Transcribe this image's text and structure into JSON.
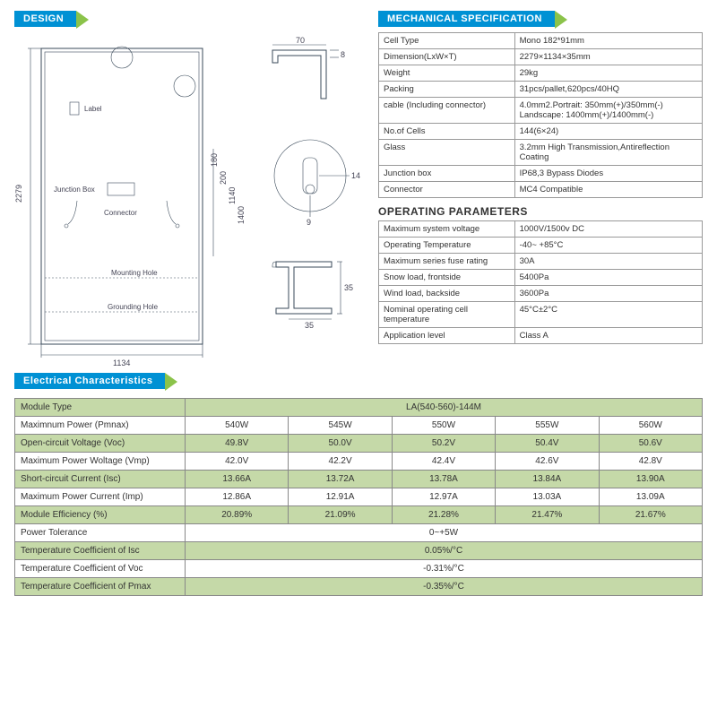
{
  "headers": {
    "design": "DESIGN",
    "mech": "MECHANICAL SPECIFICATION",
    "op": "OPERATING PARAMETERS",
    "elec": "Electrical Characteristics"
  },
  "diagram": {
    "label": "Label",
    "junction_box": "Junction Box",
    "connector": "Connector",
    "mounting_hole": "Mounting Hole",
    "grounding_hole": "Grounding Hole",
    "dim_height": "2279",
    "dim_width": "1134",
    "d70": "70",
    "d8": "8",
    "d14": "14",
    "d9": "9",
    "d35a": "35",
    "d35b": "35",
    "d1400": "1400",
    "d1140": "1140",
    "d200": "200",
    "d180": "180"
  },
  "mech_spec": [
    [
      "Cell Type",
      "Mono 182*91mm"
    ],
    [
      "Dimension(LxW×T)",
      "2279×1134×35mm"
    ],
    [
      "Weight",
      "29kg"
    ],
    [
      "Packing",
      "31pcs/pallet,620pcs/40HQ"
    ],
    [
      "cable (Including connector)",
      "4.0mm2.Portrait: 350mm(+)/350mm(-) Landscape: 1400mm(+)/1400mm(-)"
    ],
    [
      "No.of Cells",
      "144(6×24)"
    ],
    [
      "Glass",
      "3.2mm High Transmission,Antireflection Coating"
    ],
    [
      "Junction box",
      "IP68,3 Bypass Diodes"
    ],
    [
      "Connector",
      "MC4 Compatible"
    ]
  ],
  "op_params": [
    [
      "Maximum system voltage",
      "1000V/1500v DC"
    ],
    [
      "Operating Temperature",
      "-40~ +85°C"
    ],
    [
      "Maximum series fuse rating",
      "30A"
    ],
    [
      "Snow load, frontside",
      "5400Pa"
    ],
    [
      "Wind load, backside",
      "3600Pa"
    ],
    [
      "Nominal operating cell temperature",
      "45°C±2°C"
    ],
    [
      "Application level",
      "Class A"
    ]
  ],
  "elec": {
    "module_type_label": "Module Type",
    "module_type_value": "LA(540-560)-144M",
    "rows": [
      {
        "label": "Maximnum Power (Pmnax)",
        "vals": [
          "540W",
          "545W",
          "550W",
          "555W",
          "560W"
        ],
        "shade": false
      },
      {
        "label": "Open-circuit Voltage (Voc)",
        "vals": [
          "49.8V",
          "50.0V",
          "50.2V",
          "50.4V",
          "50.6V"
        ],
        "shade": true
      },
      {
        "label": "Maximum Power Woltage (Vmp)",
        "vals": [
          "42.0V",
          "42.2V",
          "42.4V",
          "42.6V",
          "42.8V"
        ],
        "shade": false
      },
      {
        "label": "Short-circuit Current (Isc)",
        "vals": [
          "13.66A",
          "13.72A",
          "13.78A",
          "13.84A",
          "13.90A"
        ],
        "shade": true
      },
      {
        "label": "Maximum Power Current (Imp)",
        "vals": [
          "12.86A",
          "12.91A",
          "12.97A",
          "13.03A",
          "13.09A"
        ],
        "shade": false
      },
      {
        "label": "Module Efficiency (%)",
        "vals": [
          "20.89%",
          "21.09%",
          "21.28%",
          "21.47%",
          "21.67%"
        ],
        "shade": true
      }
    ],
    "span_rows": [
      {
        "label": "Power Tolerance",
        "val": "0~+5W",
        "shade": false
      },
      {
        "label": "Temperature Coefficient of Isc",
        "val": "0.05%/°C",
        "shade": true
      },
      {
        "label": "Temperature Coefficient of Voc",
        "val": "-0.31%/°C",
        "shade": false
      },
      {
        "label": "Temperature Coefficient of Pmax",
        "val": "-0.35%/°C",
        "shade": true
      }
    ]
  },
  "colors": {
    "header_bg": "#0091d4",
    "accent": "#8bc34a",
    "shade_bg": "#c5d9a8",
    "border": "#888888"
  }
}
